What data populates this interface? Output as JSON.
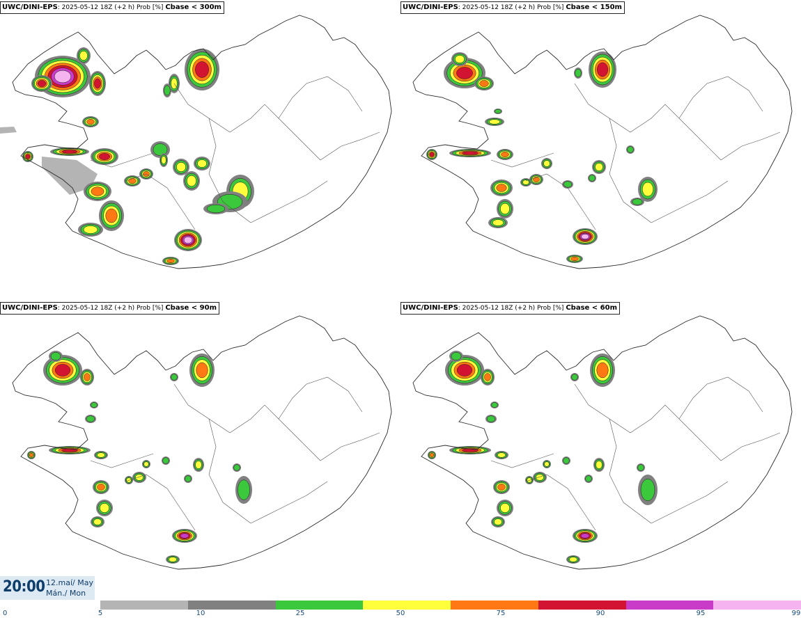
{
  "panels": [
    {
      "model": "UWC/DINI-EPS",
      "info": ": 2025-05-12 18Z (+2 h) Prob [%]",
      "threshold": "Cbase < 300m"
    },
    {
      "model": "UWC/DINI-EPS",
      "info": ": 2025-05-12 18Z (+2 h) Prob [%]",
      "threshold": "Cbase < 150m"
    },
    {
      "model": "UWC/DINI-EPS",
      "info": ": 2025-05-12 18Z (+2 h) Prob [%]",
      "threshold": "Cbase < 90m"
    },
    {
      "model": "UWC/DINI-EPS",
      "info": ": 2025-05-12 18Z (+2 h) Prob [%]",
      "threshold": "Cbase < 60m"
    }
  ],
  "time": {
    "clock": "20:00",
    "date_line1": "12.maí/ May",
    "date_line2": "Mán./ Mon"
  },
  "legend": {
    "ticks": [
      "0",
      "5",
      "10",
      "25",
      "50",
      "75",
      "90",
      "95",
      "99"
    ],
    "colors": [
      "#b4b4b4",
      "#808080",
      "#3cc83c",
      "#ffff3c",
      "#ff7814",
      "#d21432",
      "#c83cc8",
      "#f5b4f0"
    ]
  },
  "map_colors": {
    "grey_light": "#b4b4b4",
    "grey_dark": "#808080",
    "green": "#3cc83c",
    "yellow": "#ffff3c",
    "orange": "#ff7814",
    "red": "#d21432",
    "magenta": "#c83cc8",
    "pink": "#f5b4f0"
  }
}
